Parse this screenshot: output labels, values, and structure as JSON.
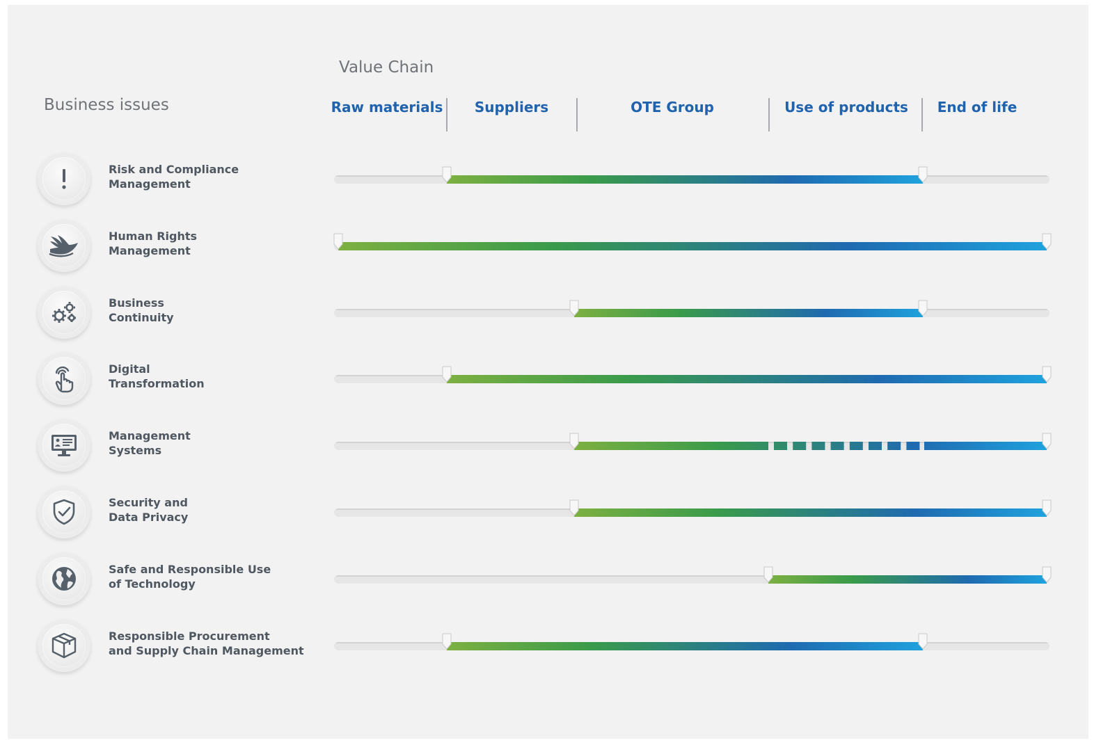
{
  "headers": {
    "business_issues": "Business issues",
    "value_chain": "Value Chain"
  },
  "stages": [
    "Raw materials",
    "Suppliers",
    "OTE Group",
    "Use of products",
    "End of life"
  ],
  "colors": {
    "label_blue": "#1f62ad",
    "gradient_start": "#7db041",
    "gradient_mid": "#3a9b4a",
    "gradient_blue": "#1f6ab0",
    "gradient_end": "#1fa2dd",
    "track": "#e6e6e6"
  },
  "issues": [
    {
      "icon": "exclamation-icon",
      "line1": "Risk and Compliance",
      "line2": "Management",
      "from": "Suppliers",
      "to": "Use of products",
      "dashed_stretch": null
    },
    {
      "icon": "hand-bird-icon",
      "line1": "Human Rights",
      "line2": "Management",
      "from": "Raw materials",
      "to": "End of life",
      "dashed_stretch": null
    },
    {
      "icon": "gears-icon",
      "line1": "Business",
      "line2": "Continuity",
      "from": "OTE Group",
      "to": "Use of products",
      "dashed_stretch": null
    },
    {
      "icon": "touch-hand-icon",
      "line1": "Digital",
      "line2": "Transformation",
      "from": "Suppliers",
      "to": "End of life",
      "dashed_stretch": null
    },
    {
      "icon": "monitor-icon",
      "line1": "Management",
      "line2": "Systems",
      "from": "OTE Group",
      "to": "End of life",
      "dashed_stretch": "Use of products"
    },
    {
      "icon": "shield-check-icon",
      "line1": "Security and",
      "line2": "Data Privacy",
      "from": "OTE Group",
      "to": "End of life",
      "dashed_stretch": null
    },
    {
      "icon": "globe-icon",
      "line1": "Safe and Responsible Use",
      "line2": "of Technology",
      "from": "Use of products",
      "to": "End of life",
      "dashed_stretch": null
    },
    {
      "icon": "package-icon",
      "line1": "Responsible Procurement",
      "line2": "and Supply Chain Management",
      "from": "Suppliers",
      "to": "Use of products",
      "dashed_stretch": null
    }
  ]
}
